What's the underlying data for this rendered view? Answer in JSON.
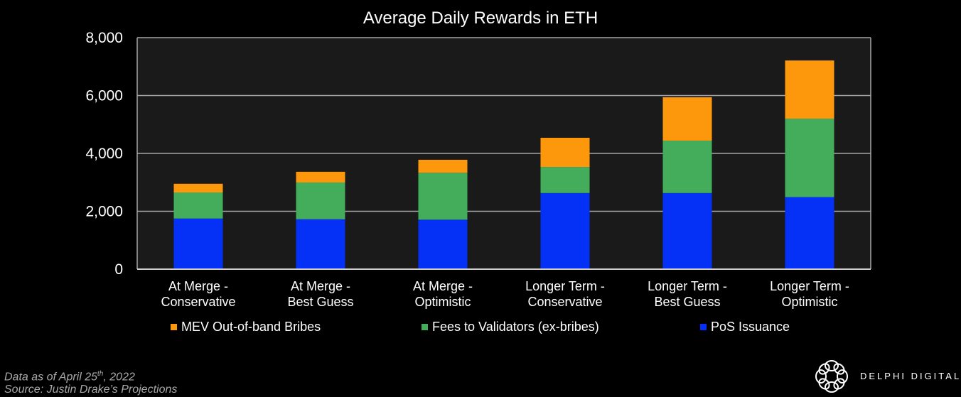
{
  "chart_data": {
    "type": "bar",
    "stacked": true,
    "title": "Average Daily Rewards in ETH",
    "xlabel": "",
    "ylabel": "",
    "ylim": [
      0,
      8000
    ],
    "yticks": [
      0,
      2000,
      4000,
      6000,
      8000
    ],
    "ytick_labels": [
      "0",
      "2,000",
      "4,000",
      "6,000",
      "8,000"
    ],
    "grid": true,
    "legend_position": "bottom",
    "categories": [
      [
        "At Merge -",
        "Conservative"
      ],
      [
        "At Merge -",
        "Best Guess"
      ],
      [
        "At Merge -",
        "Optimistic"
      ],
      [
        "Longer Term -",
        "Conservative"
      ],
      [
        "Longer Term -",
        "Best Guess"
      ],
      [
        "Longer Term -",
        "Optimistic"
      ]
    ],
    "series": [
      {
        "name": "PoS Issuance",
        "color": "#0431f5",
        "values": [
          1750,
          1725,
          1710,
          2630,
          2630,
          2490
        ]
      },
      {
        "name": "Fees to Validators (ex-bribes)",
        "color": "#44ad5b",
        "values": [
          900,
          1270,
          1620,
          900,
          1810,
          2710
        ]
      },
      {
        "name": "MEV Out-of-band Bribes",
        "color": "#fd980d",
        "values": [
          300,
          370,
          450,
          1010,
          1500,
          2010
        ]
      }
    ],
    "legend_order": [
      "MEV Out-of-band Bribes",
      "Fees to Validators (ex-bribes)",
      "PoS Issuance"
    ]
  },
  "footnote": {
    "line1_pre": "Data as of April 25",
    "line1_sup": "th",
    "line1_post": ", 2022",
    "line2": "Source: Justin Drake’s Projections"
  },
  "brand": {
    "name": "DELPHI DIGITAL",
    "logo_icon": "delphi-knot-logo"
  },
  "colors": {
    "background": "#000000",
    "plot_background": "#1a1a1a",
    "gridline": "#a6a6a6"
  }
}
